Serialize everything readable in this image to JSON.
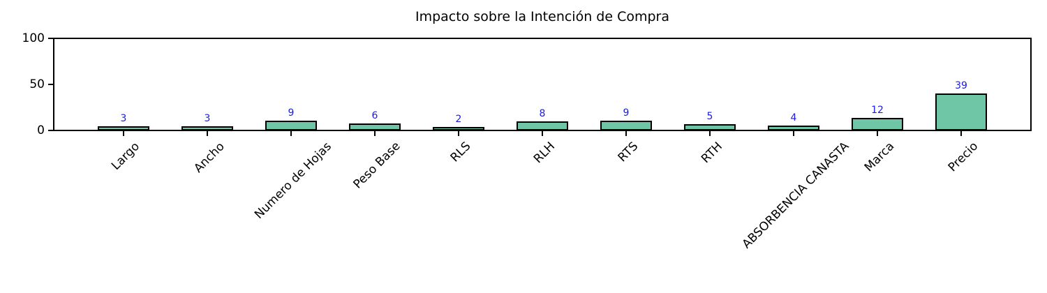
{
  "chart_data": {
    "type": "bar",
    "title": "Impacto sobre la Intención de Compra",
    "categories": [
      "Largo",
      "Ancho",
      "Numero de Hojas",
      "Peso Base",
      "RLS",
      "RLH",
      "RTS",
      "RTH",
      "ABSORBENCIA CANASTA",
      "Marca",
      "Precio"
    ],
    "values": [
      3,
      3,
      9,
      6,
      2,
      8,
      9,
      5,
      4,
      12,
      39
    ],
    "xlabel": "",
    "ylabel": "",
    "ylim": [
      0,
      100
    ],
    "yticks": [
      0,
      50,
      100
    ],
    "x_tick_rotation_deg": 45,
    "grid": false,
    "legend": null,
    "value_labels_shown": true,
    "colors": {
      "bar_fill": "#6ec6a6",
      "bar_edge": "#000000",
      "value_label": "#1a1ae0",
      "axis": "#000000",
      "text": "#000000",
      "background": "#ffffff"
    }
  }
}
